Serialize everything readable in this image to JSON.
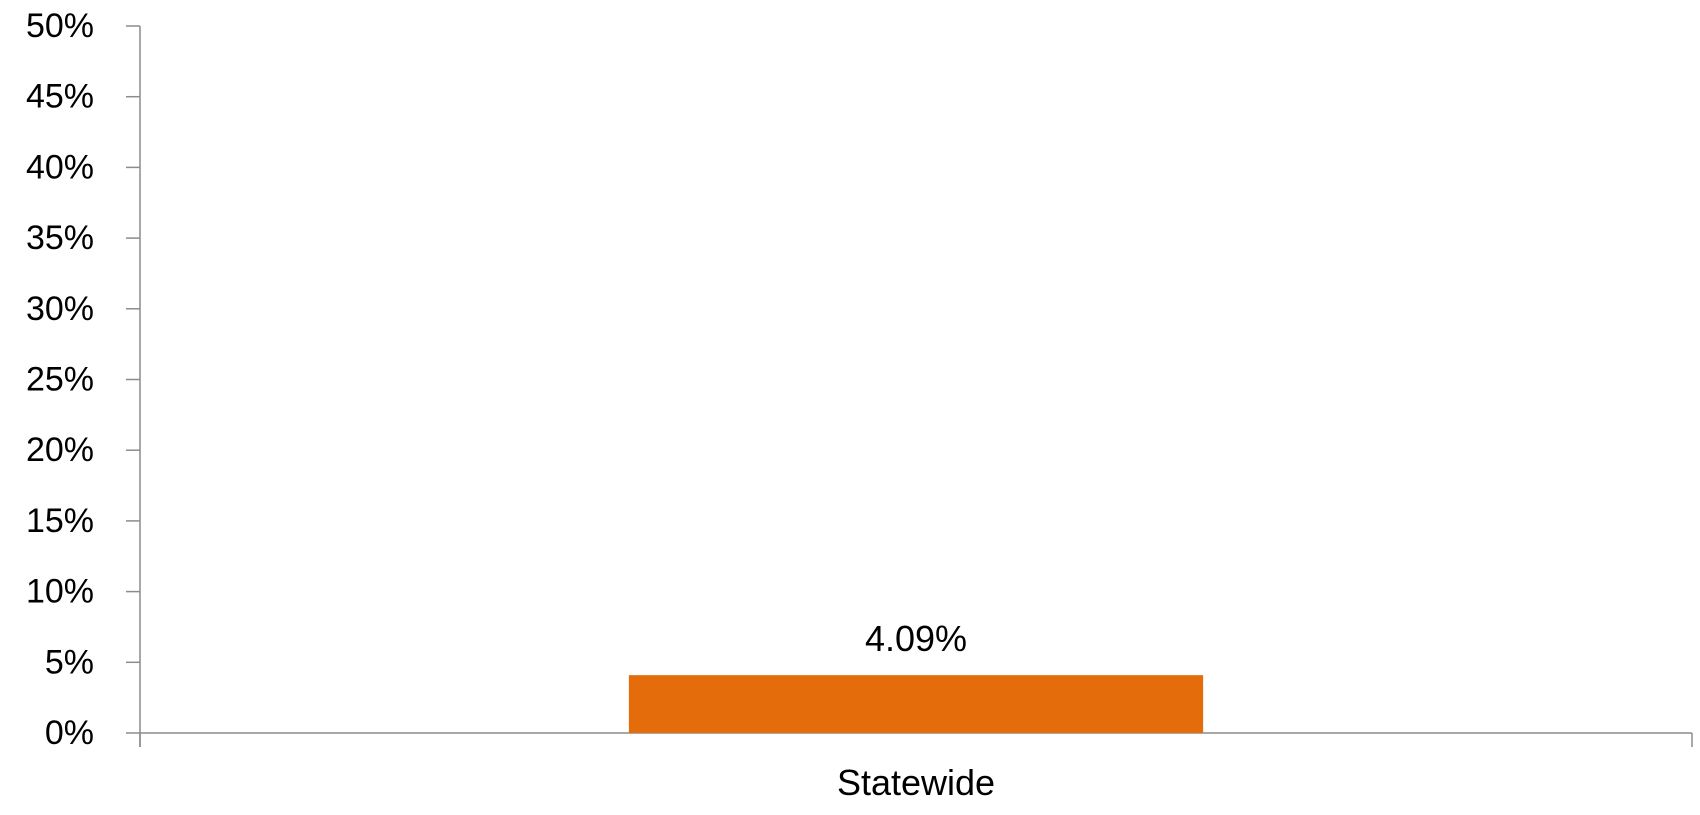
{
  "chart_data": {
    "type": "bar",
    "categories": [
      "Statewide"
    ],
    "values": [
      4.09
    ],
    "data_labels": [
      "4.09%"
    ],
    "y_ticks": [
      0,
      5,
      10,
      15,
      20,
      25,
      30,
      35,
      40,
      45,
      50
    ],
    "y_tick_labels": [
      "0%",
      "5%",
      "10%",
      "15%",
      "20%",
      "25%",
      "30%",
      "35%",
      "40%",
      "45%",
      "50%"
    ],
    "ylim": [
      0,
      50
    ],
    "grid": false,
    "legend": "none",
    "bar_color": "#E46C0A"
  }
}
